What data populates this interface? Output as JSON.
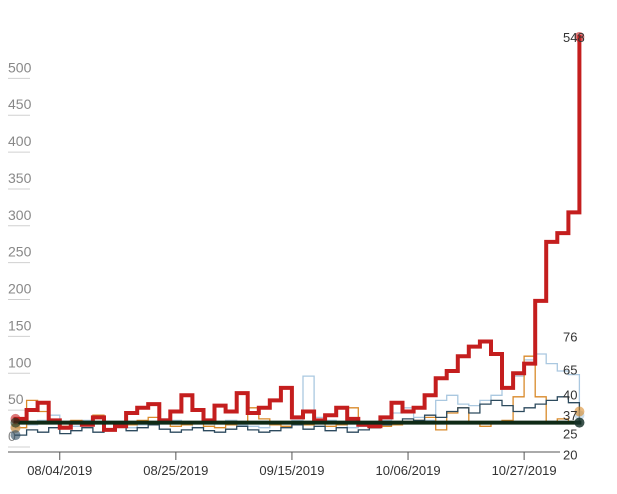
{
  "chart_data": {
    "type": "line",
    "title": "",
    "xlabel": "",
    "ylabel": "",
    "x_range": [
      "2019-07-26",
      "2019-11-09"
    ],
    "ylim": [
      0,
      570
    ],
    "y_ticks": [
      0,
      50,
      100,
      150,
      200,
      250,
      300,
      350,
      400,
      450,
      500
    ],
    "y_tick_labels": [
      "0",
      "50",
      "100",
      "150",
      "200",
      "250",
      "300",
      "350",
      "400",
      "450",
      "500"
    ],
    "x_ticks": [
      "2019-08-04",
      "2019-08-25",
      "2019-09-15",
      "2019-10-06",
      "2019-10-27"
    ],
    "x_tick_labels": [
      "08/04/2019",
      "08/25/2019",
      "09/15/2019",
      "10/06/2019",
      "10/27/2019"
    ],
    "grid": false,
    "step_lines": true,
    "end_labels": [
      {
        "value": "548",
        "y": 548
      },
      {
        "value": "76",
        "y": 142
      },
      {
        "value": "65",
        "y": 97
      },
      {
        "value": "40",
        "y": 63
      },
      {
        "value": "37",
        "y": 35
      },
      {
        "value": "25",
        "y": 10
      },
      {
        "value": "20",
        "y": -18
      }
    ],
    "series": [
      {
        "color": "#aac8e0",
        "width": 1.3,
        "x": [
          "2019-07-27",
          "2019-07-29",
          "2019-07-31",
          "2019-08-02",
          "2019-08-04",
          "2019-08-06",
          "2019-08-08",
          "2019-08-10",
          "2019-08-12",
          "2019-08-14",
          "2019-08-16",
          "2019-08-18",
          "2019-08-20",
          "2019-08-22",
          "2019-08-24",
          "2019-08-26",
          "2019-08-28",
          "2019-08-30",
          "2019-09-01",
          "2019-09-03",
          "2019-09-05",
          "2019-09-07",
          "2019-09-09",
          "2019-09-11",
          "2019-09-13",
          "2019-09-15",
          "2019-09-17",
          "2019-09-19",
          "2019-09-21",
          "2019-09-23",
          "2019-09-25",
          "2019-09-27",
          "2019-09-29",
          "2019-10-01",
          "2019-10-03",
          "2019-10-05",
          "2019-10-07",
          "2019-10-09",
          "2019-10-11",
          "2019-10-13",
          "2019-10-15",
          "2019-10-17",
          "2019-10-19",
          "2019-10-21",
          "2019-10-23",
          "2019-10-25",
          "2019-10-27",
          "2019-10-29",
          "2019-10-31",
          "2019-11-02",
          "2019-11-04",
          "2019-11-06"
        ],
        "values": [
          18,
          22,
          28,
          35,
          25,
          20,
          28,
          32,
          25,
          20,
          18,
          22,
          25,
          30,
          28,
          22,
          18,
          20,
          25,
          28,
          22,
          20,
          18,
          22,
          25,
          28,
          88,
          32,
          28,
          22,
          18,
          20,
          25,
          28,
          38,
          45,
          32,
          28,
          55,
          62,
          50,
          48,
          55,
          62,
          72,
          88,
          110,
          118,
          105,
          95,
          90,
          35
        ]
      },
      {
        "color": "#d98a2a",
        "width": 1.3,
        "x": [
          "2019-07-27",
          "2019-07-29",
          "2019-07-31",
          "2019-08-02",
          "2019-08-04",
          "2019-08-06",
          "2019-08-08",
          "2019-08-10",
          "2019-08-12",
          "2019-08-14",
          "2019-08-16",
          "2019-08-18",
          "2019-08-20",
          "2019-08-22",
          "2019-08-24",
          "2019-08-26",
          "2019-08-28",
          "2019-08-30",
          "2019-09-01",
          "2019-09-03",
          "2019-09-05",
          "2019-09-07",
          "2019-09-09",
          "2019-09-11",
          "2019-09-13",
          "2019-09-15",
          "2019-09-17",
          "2019-09-19",
          "2019-09-21",
          "2019-09-23",
          "2019-09-25",
          "2019-09-27",
          "2019-09-29",
          "2019-10-01",
          "2019-10-03",
          "2019-10-05",
          "2019-10-07",
          "2019-10-09",
          "2019-10-11",
          "2019-10-13",
          "2019-10-15",
          "2019-10-17",
          "2019-10-19",
          "2019-10-21",
          "2019-10-23",
          "2019-10-25",
          "2019-10-27",
          "2019-10-29",
          "2019-10-31",
          "2019-11-02",
          "2019-11-04",
          "2019-11-06"
        ],
        "values": [
          18,
          55,
          40,
          25,
          20,
          28,
          22,
          35,
          25,
          20,
          22,
          28,
          32,
          25,
          20,
          22,
          25,
          20,
          18,
          22,
          25,
          45,
          30,
          22,
          20,
          25,
          22,
          28,
          20,
          22,
          45,
          25,
          18,
          20,
          22,
          25,
          28,
          32,
          15,
          38,
          45,
          25,
          20,
          25,
          28,
          60,
          115,
          60,
          25,
          30,
          25,
          40
        ]
      },
      {
        "color": "#2c4a5e",
        "width": 1.3,
        "x": [
          "2019-07-27",
          "2019-07-29",
          "2019-07-31",
          "2019-08-02",
          "2019-08-04",
          "2019-08-06",
          "2019-08-08",
          "2019-08-10",
          "2019-08-12",
          "2019-08-14",
          "2019-08-16",
          "2019-08-18",
          "2019-08-20",
          "2019-08-22",
          "2019-08-24",
          "2019-08-26",
          "2019-08-28",
          "2019-08-30",
          "2019-09-01",
          "2019-09-03",
          "2019-09-05",
          "2019-09-07",
          "2019-09-09",
          "2019-09-11",
          "2019-09-13",
          "2019-09-15",
          "2019-09-17",
          "2019-09-19",
          "2019-09-21",
          "2019-09-23",
          "2019-09-25",
          "2019-09-27",
          "2019-09-29",
          "2019-10-01",
          "2019-10-03",
          "2019-10-05",
          "2019-10-07",
          "2019-10-09",
          "2019-10-11",
          "2019-10-13",
          "2019-10-15",
          "2019-10-17",
          "2019-10-19",
          "2019-10-21",
          "2019-10-23",
          "2019-10-25",
          "2019-10-27",
          "2019-10-29",
          "2019-10-31",
          "2019-11-02",
          "2019-11-04",
          "2019-11-06"
        ],
        "values": [
          8,
          15,
          12,
          18,
          10,
          14,
          18,
          12,
          16,
          20,
          14,
          18,
          22,
          16,
          12,
          15,
          18,
          14,
          12,
          16,
          20,
          15,
          12,
          14,
          18,
          22,
          16,
          20,
          14,
          18,
          12,
          15,
          18,
          22,
          26,
          30,
          28,
          35,
          32,
          40,
          45,
          38,
          50,
          55,
          48,
          40,
          45,
          50,
          55,
          60,
          52,
          25
        ]
      },
      {
        "color": "#c41e1e",
        "width": 4,
        "x": [
          "2019-07-27",
          "2019-07-29",
          "2019-07-31",
          "2019-08-02",
          "2019-08-04",
          "2019-08-06",
          "2019-08-08",
          "2019-08-10",
          "2019-08-12",
          "2019-08-14",
          "2019-08-16",
          "2019-08-18",
          "2019-08-20",
          "2019-08-22",
          "2019-08-24",
          "2019-08-26",
          "2019-08-28",
          "2019-08-30",
          "2019-09-01",
          "2019-09-03",
          "2019-09-05",
          "2019-09-07",
          "2019-09-09",
          "2019-09-11",
          "2019-09-13",
          "2019-09-15",
          "2019-09-17",
          "2019-09-19",
          "2019-09-21",
          "2019-09-23",
          "2019-09-25",
          "2019-09-27",
          "2019-09-29",
          "2019-10-01",
          "2019-10-03",
          "2019-10-05",
          "2019-10-07",
          "2019-10-09",
          "2019-10-11",
          "2019-10-13",
          "2019-10-15",
          "2019-10-17",
          "2019-10-19",
          "2019-10-21",
          "2019-10-23",
          "2019-10-25",
          "2019-10-27",
          "2019-10-29",
          "2019-10-31",
          "2019-11-02",
          "2019-11-04",
          "2019-11-06"
        ],
        "values": [
          30,
          42,
          52,
          28,
          18,
          25,
          22,
          32,
          15,
          20,
          38,
          45,
          50,
          28,
          40,
          62,
          42,
          28,
          48,
          40,
          65,
          38,
          45,
          55,
          72,
          32,
          40,
          28,
          35,
          45,
          30,
          22,
          20,
          32,
          52,
          40,
          45,
          62,
          85,
          95,
          115,
          128,
          135,
          118,
          72,
          92,
          105,
          190,
          270,
          282,
          310,
          548
        ]
      },
      {
        "color": "#0f2a16",
        "width": 4,
        "x": [
          "2019-07-27",
          "2019-11-06"
        ],
        "values": [
          25,
          25
        ]
      }
    ]
  }
}
